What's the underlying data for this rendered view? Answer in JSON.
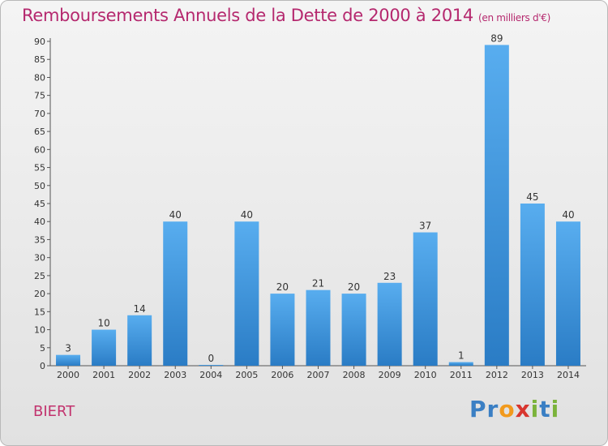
{
  "title": "Remboursements Annuels de la Dette de 2000 à 2014",
  "unit": "(en milliers d'€)",
  "commune": "BIERT",
  "logo": [
    "Pr",
    "o",
    "x",
    "i",
    "t",
    "i"
  ],
  "chart_data": {
    "type": "bar",
    "title": "Remboursements Annuels de la Dette de 2000 à 2014",
    "subtitle": "(en milliers d'€)",
    "categories": [
      "2000",
      "2001",
      "2002",
      "2003",
      "2004",
      "2005",
      "2006",
      "2007",
      "2008",
      "2009",
      "2010",
      "2011",
      "2012",
      "2013",
      "2014"
    ],
    "values": [
      3,
      10,
      14,
      40,
      0,
      40,
      20,
      21,
      20,
      23,
      37,
      1,
      89,
      45,
      40
    ],
    "ylim": [
      0,
      90
    ],
    "yticks": [
      0,
      5,
      10,
      15,
      20,
      25,
      30,
      35,
      40,
      45,
      50,
      55,
      60,
      65,
      70,
      75,
      80,
      85,
      90
    ],
    "grid": false,
    "bar_color": "#3f97df",
    "xlabel": "",
    "ylabel": ""
  }
}
